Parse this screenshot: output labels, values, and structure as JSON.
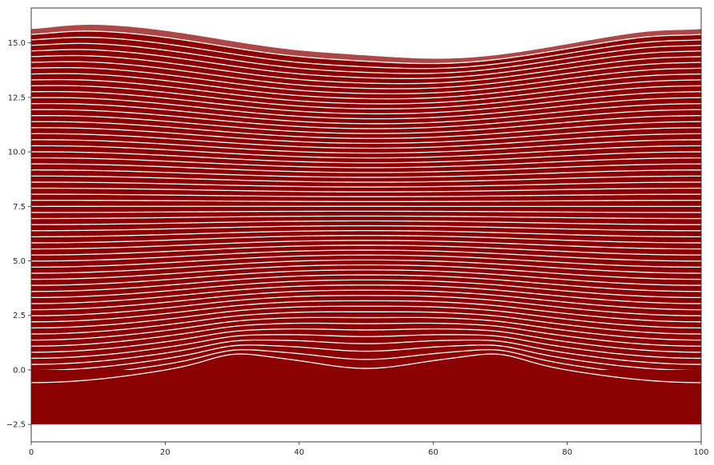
{
  "chart_data": {
    "type": "line",
    "title": "",
    "xlabel": "",
    "ylabel": "",
    "xlim": [
      0,
      100
    ],
    "ylim": [
      -3.3,
      16.6
    ],
    "x_ticks": [
      0,
      20,
      40,
      60,
      80,
      100
    ],
    "x_tick_labels": [
      "0",
      "20",
      "40",
      "60",
      "80",
      "100"
    ],
    "y_ticks": [
      -2.5,
      0.0,
      2.5,
      5.0,
      7.5,
      10.0,
      12.5,
      15.0
    ],
    "y_tick_labels": [
      "−2.5",
      "0.0",
      "2.5",
      "5.0",
      "7.5",
      "10.0",
      "12.5",
      "15.0"
    ],
    "grid": false,
    "legend": "none",
    "base_fill": {
      "y_range": [
        -2.5,
        0.0
      ]
    },
    "series_description": {
      "count": 60,
      "baseline_start": 0.25,
      "baseline_step": 0.25,
      "baseline_end": 15.0
    },
    "features": {
      "crossing_points": [
        {
          "x": 0,
          "y": 6.0
        },
        {
          "x": 0,
          "y": 14.2
        },
        {
          "x": 20,
          "y": 10.0
        },
        {
          "x": 30,
          "y": 1.0
        },
        {
          "x": 50,
          "y": 5.0
        },
        {
          "x": 50,
          "y": 14.6
        },
        {
          "x": 70,
          "y": 1.0
        },
        {
          "x": 80,
          "y": 10.0
        },
        {
          "x": 100,
          "y": 6.0
        },
        {
          "x": 100,
          "y": 14.2
        }
      ],
      "dip_min": {
        "x": 50,
        "y": -1.3
      },
      "top_envelope_max": {
        "x": 25,
        "y": 15.6
      }
    },
    "colors": {
      "fill": "#8b0000",
      "line": "#ffffff",
      "axis": "#262626",
      "background": "#ffffff"
    }
  }
}
